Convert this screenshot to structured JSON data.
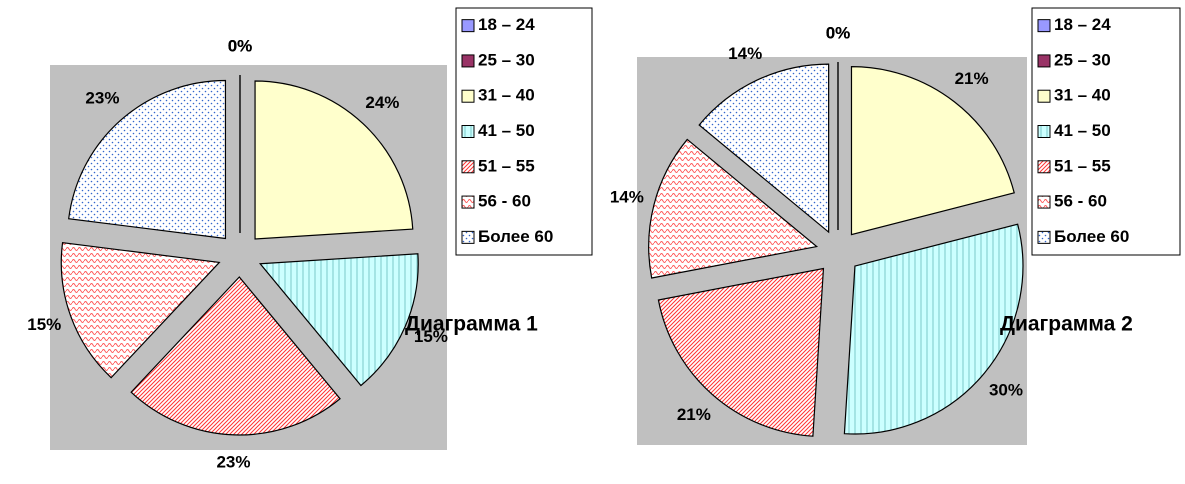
{
  "chart_data": [
    {
      "type": "pie",
      "title": "Диаграмма 1",
      "categories": [
        "18 – 24",
        "25 – 30",
        "31 – 40",
        "41 – 50",
        "51 – 55",
        "56 - 60",
        "Более 60"
      ],
      "values": [
        0,
        0,
        24,
        15,
        23,
        15,
        23
      ],
      "value_labels": [
        "0%",
        "0%",
        "24%",
        "15%",
        "23%",
        "15%",
        "23%"
      ],
      "colors": [
        "#9999ff",
        "#993366",
        "#ffffcc",
        "#ccffff",
        "#ffffff",
        "#ffffff",
        "#ffffff"
      ],
      "patterns": [
        "solid",
        "solid",
        "solid",
        "vlines",
        "diag",
        "wave",
        "dots"
      ],
      "legend": "right"
    },
    {
      "type": "pie",
      "title": "Диаграмма 2",
      "categories": [
        "18 – 24",
        "25 – 30",
        "31 – 40",
        "41 – 50",
        "51 – 55",
        "56 - 60",
        "Более 60"
      ],
      "values": [
        0,
        0,
        21,
        30,
        21,
        14,
        14
      ],
      "value_labels": [
        "0%",
        "0%",
        "21%",
        "30%",
        "21%",
        "14%",
        "14%"
      ],
      "colors": [
        "#9999ff",
        "#993366",
        "#ffffcc",
        "#ccffff",
        "#ffffff",
        "#ffffff",
        "#ffffff"
      ],
      "patterns": [
        "solid",
        "solid",
        "solid",
        "vlines",
        "diag",
        "wave",
        "dots"
      ],
      "legend": "right"
    }
  ]
}
